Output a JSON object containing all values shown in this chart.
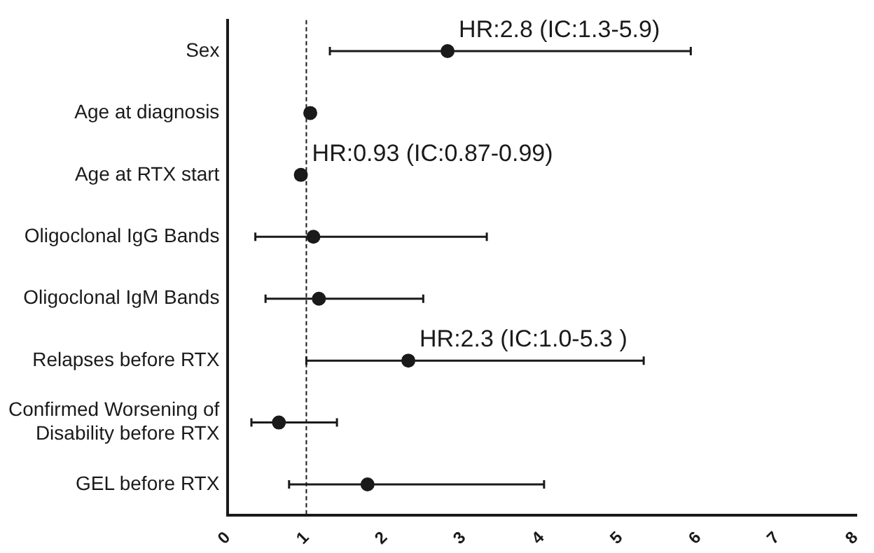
{
  "chart_data": {
    "type": "scatter",
    "orientation": "horizontal",
    "marker": "circle",
    "grid": false,
    "legend": false,
    "categories": [
      "Sex",
      "Age at diagnosis",
      "Age at RTX start",
      "Oligoclonal IgG Bands",
      "Oligoclonal IgM Bands",
      "Relapses before RTX",
      "Confirmed Worsening of\nDisability before RTX",
      "GEL before RTX"
    ],
    "values": [
      2.8,
      1.05,
      0.93,
      1.09,
      1.16,
      2.3,
      0.65,
      1.78
    ],
    "errors": [
      [
        1.3,
        5.9
      ],
      null,
      [
        0.87,
        0.99
      ],
      [
        0.35,
        3.3
      ],
      [
        0.48,
        2.49
      ],
      [
        1.0,
        5.3
      ],
      [
        0.3,
        1.39
      ],
      [
        0.78,
        4.03
      ]
    ],
    "color": "#1a1a1a",
    "xlim": [
      0,
      8
    ],
    "xticks": [
      0,
      1,
      2,
      3,
      4,
      5,
      6,
      7,
      8
    ],
    "ref_lines": [
      {
        "axis": "x",
        "value": 1,
        "line_style": "dashed",
        "color": "#1a1a1a"
      }
    ],
    "annotations": [
      {
        "text": "HR:2.8 (IC:1.3-5.9)",
        "x": 2.8,
        "y": "Sex"
      },
      {
        "text": "HR:0.93 (IC:0.87-0.99)",
        "x": 0.93,
        "y": "Age at RTX start"
      },
      {
        "text": "HR:2.3 (IC:1.0-5.3 )",
        "x": 2.3,
        "y": "Relapses before RTX"
      }
    ]
  }
}
